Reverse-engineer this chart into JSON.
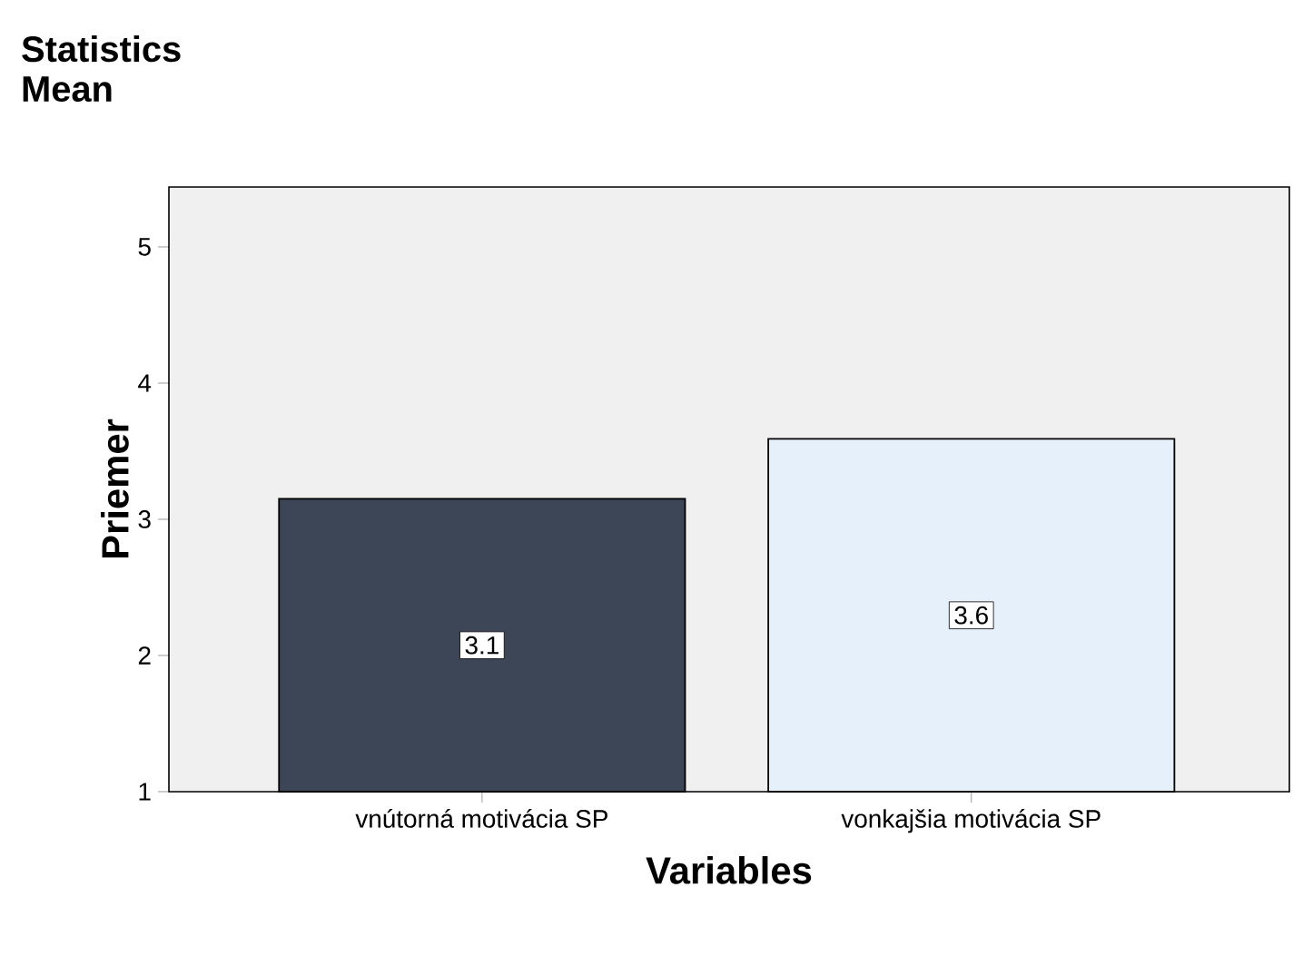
{
  "chart_data": {
    "type": "bar",
    "title": "Statistics",
    "subtitle": "Mean",
    "xlabel": "Variables",
    "ylabel": "Priemer",
    "categories": [
      "vnútorná motivácia SP",
      "vonkajšia motivácia SP"
    ],
    "values": [
      3.15,
      3.59
    ],
    "value_labels": [
      "3.1",
      "3.6"
    ],
    "colors": [
      "#3c4656",
      "#e6f0fb"
    ],
    "ylim": [
      1,
      5.44
    ],
    "yticks": [
      1,
      2,
      3,
      4,
      5
    ],
    "grid": false
  }
}
